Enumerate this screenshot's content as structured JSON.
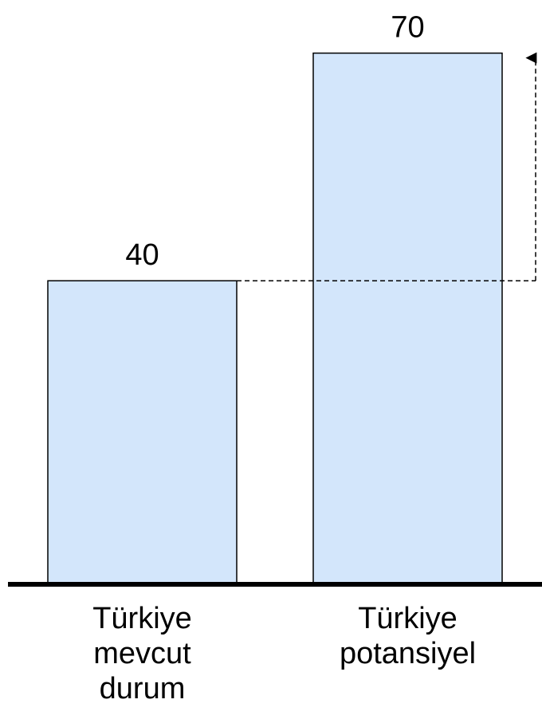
{
  "chart_data": {
    "type": "bar",
    "title": "",
    "xlabel": "",
    "ylabel": "",
    "categories": [
      [
        "Türkiye",
        "mevcut",
        "durum"
      ],
      [
        "Türkiye",
        "potansiyel"
      ]
    ],
    "values": [
      40,
      70
    ],
    "value_labels": [
      "40",
      "70"
    ],
    "ylim": [
      0,
      77
    ],
    "grid": false,
    "legend": "none",
    "annotation": {
      "type": "dashed-arrow",
      "from_value": 40,
      "to_value": 70,
      "placement": "right"
    },
    "colors": {
      "bar_fill": "#d3e6fb",
      "bar_stroke": "#000000",
      "axis": "#000000",
      "annotation": "#000000"
    }
  }
}
